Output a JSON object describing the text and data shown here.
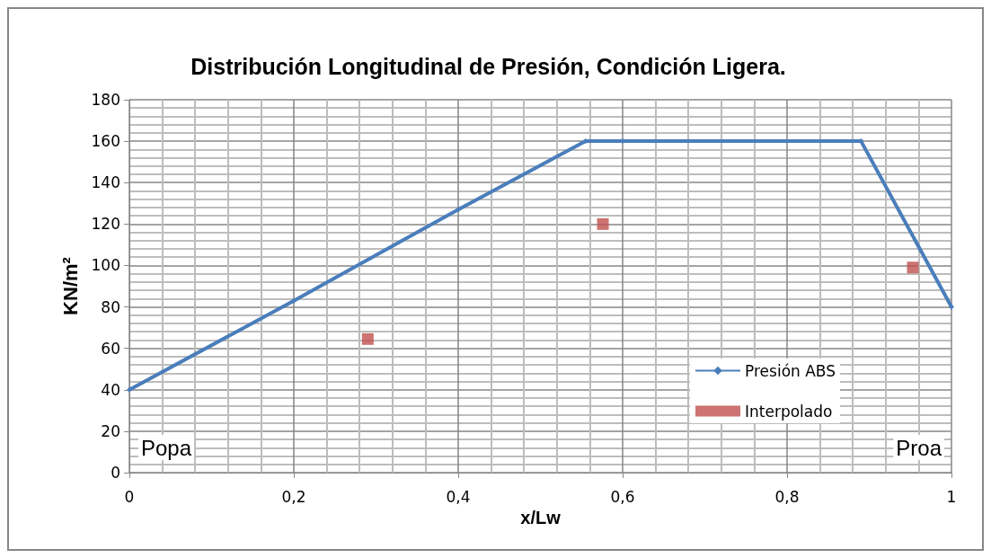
{
  "chart_data": {
    "type": "line",
    "title": "Distribución Longitudinal de Presión, Condición Ligera.",
    "xlabel": "x/Lw",
    "ylabel": "KN/m²",
    "series": [
      {
        "name": "Presión ABS",
        "color": "#4a7ebb",
        "marker": "diamond",
        "x": [
          0,
          0.2,
          0.4,
          0.555,
          0.6,
          0.89,
          1
        ],
        "values": [
          40,
          83,
          127,
          160,
          160,
          160,
          80
        ]
      },
      {
        "name": "Interpolado",
        "type": "scatter",
        "color": "#c0504d",
        "marker": "square",
        "x": [
          0.29,
          0.576,
          0.953
        ],
        "values": [
          64.5,
          120,
          99
        ]
      }
    ],
    "xlim": [
      0,
      1
    ],
    "xticks": [
      0,
      {
        "value": 0.2,
        "label": "0,2"
      },
      {
        "value": 0.4,
        "label": "0,4"
      },
      {
        "value": 0.6,
        "label": "0,6"
      },
      {
        "value": 0.8,
        "label": "0,8"
      },
      1
    ],
    "ylim": [
      0,
      180
    ],
    "yticks": [
      0,
      20,
      40,
      60,
      80,
      100,
      120,
      140,
      160,
      180
    ],
    "annotations": [
      "Popa",
      "Proa"
    ],
    "grid": true,
    "legend": "bottom right"
  }
}
